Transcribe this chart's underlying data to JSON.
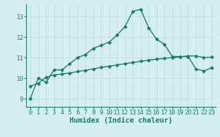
{
  "xlabel": "Humidex (Indice chaleur)",
  "bg_color": "#d5eeee",
  "line_color": "#1a7a6e",
  "x_ticks": [
    0,
    1,
    2,
    3,
    4,
    5,
    6,
    7,
    8,
    9,
    10,
    11,
    12,
    13,
    14,
    15,
    16,
    17,
    18,
    19,
    20,
    21,
    22,
    23
  ],
  "y_ticks": [
    9,
    10,
    11,
    12,
    13
  ],
  "ylim": [
    8.6,
    13.6
  ],
  "xlim": [
    -0.5,
    23.5
  ],
  "series1_x": [
    0,
    1,
    2,
    3,
    4,
    5,
    6,
    7,
    8,
    9,
    10,
    11,
    12,
    13,
    14,
    15,
    16,
    17,
    18,
    19,
    20,
    21,
    22,
    23
  ],
  "series1_y": [
    9.0,
    10.0,
    9.8,
    10.4,
    10.4,
    10.7,
    11.0,
    11.15,
    11.45,
    11.6,
    11.75,
    12.1,
    12.5,
    13.25,
    13.35,
    12.45,
    11.9,
    11.65,
    11.05,
    11.05,
    11.05,
    10.45,
    10.35,
    10.5
  ],
  "series2_x": [
    0,
    1,
    2,
    3,
    4,
    5,
    6,
    7,
    8,
    9,
    10,
    11,
    12,
    13,
    14,
    15,
    16,
    17,
    18,
    19,
    20,
    21,
    22,
    23
  ],
  "series2_y": [
    9.6,
    9.75,
    10.05,
    10.15,
    10.2,
    10.25,
    10.32,
    10.38,
    10.45,
    10.52,
    10.58,
    10.64,
    10.7,
    10.76,
    10.82,
    10.87,
    10.92,
    10.96,
    11.0,
    11.03,
    11.08,
    11.08,
    11.0,
    11.02
  ],
  "grid_color": "#c0dcdc",
  "marker": "D",
  "marker_size": 2.5,
  "line_width": 1.0,
  "tick_fontsize": 6.5,
  "xlabel_fontsize": 7.5
}
